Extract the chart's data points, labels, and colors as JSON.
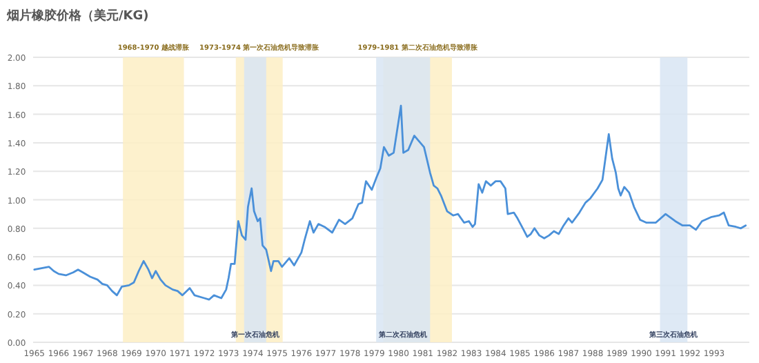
{
  "chart_data": {
    "type": "line",
    "title": "烟片橡胶价格（美元/KG)",
    "x": [
      1965.0,
      1965.3,
      1965.6,
      1965.8,
      1966.0,
      1966.3,
      1966.6,
      1966.8,
      1967.0,
      1967.3,
      1967.6,
      1967.8,
      1968.0,
      1968.2,
      1968.4,
      1968.6,
      1968.9,
      1969.1,
      1969.3,
      1969.5,
      1969.7,
      1969.85,
      1970.0,
      1970.2,
      1970.4,
      1970.7,
      1970.9,
      1971.1,
      1971.4,
      1971.6,
      1972.0,
      1972.2,
      1972.4,
      1972.7,
      1972.9,
      1973.0,
      1973.1,
      1973.25,
      1973.4,
      1973.55,
      1973.7,
      1973.8,
      1973.95,
      1974.05,
      1974.2,
      1974.3,
      1974.4,
      1974.55,
      1974.75,
      1974.85,
      1975.05,
      1975.2,
      1975.5,
      1975.7,
      1976.0,
      1976.15,
      1976.35,
      1976.5,
      1976.7,
      1976.95,
      1977.27,
      1977.55,
      1977.8,
      1978.1,
      1978.35,
      1978.5,
      1978.66,
      1978.9,
      1979.1,
      1979.25,
      1979.4,
      1979.6,
      1979.8,
      1980.1,
      1980.2,
      1980.4,
      1980.65,
      1980.85,
      1981.05,
      1981.3,
      1981.45,
      1981.6,
      1981.75,
      1982.0,
      1982.25,
      1982.45,
      1982.7,
      1982.9,
      1983.05,
      1983.15,
      1983.3,
      1983.45,
      1983.6,
      1983.8,
      1984.0,
      1984.2,
      1984.4,
      1984.5,
      1984.75,
      1984.9,
      1985.15,
      1985.3,
      1985.45,
      1985.6,
      1985.8,
      1986.0,
      1986.2,
      1986.4,
      1986.6,
      1986.8,
      1987.0,
      1987.15,
      1987.45,
      1987.7,
      1987.9,
      1988.2,
      1988.4,
      1988.66,
      1988.8,
      1988.95,
      1989.05,
      1989.15,
      1989.3,
      1989.5,
      1989.7,
      1989.95,
      1990.2,
      1990.6,
      1991.0,
      1991.4,
      1991.7,
      1992.0,
      1992.25,
      1992.5,
      1992.9,
      1993.2,
      1993.4,
      1993.6,
      1993.9,
      1994.1,
      1994.3
    ],
    "values": [
      0.51,
      0.52,
      0.53,
      0.5,
      0.48,
      0.47,
      0.49,
      0.51,
      0.49,
      0.46,
      0.44,
      0.41,
      0.4,
      0.36,
      0.33,
      0.39,
      0.4,
      0.42,
      0.5,
      0.57,
      0.51,
      0.45,
      0.5,
      0.44,
      0.4,
      0.37,
      0.36,
      0.33,
      0.38,
      0.33,
      0.31,
      0.3,
      0.33,
      0.31,
      0.37,
      0.45,
      0.55,
      0.55,
      0.85,
      0.75,
      0.72,
      0.95,
      1.08,
      0.92,
      0.85,
      0.87,
      0.68,
      0.65,
      0.5,
      0.57,
      0.57,
      0.53,
      0.59,
      0.54,
      0.63,
      0.73,
      0.85,
      0.77,
      0.83,
      0.81,
      0.77,
      0.86,
      0.83,
      0.87,
      0.97,
      0.98,
      1.13,
      1.07,
      1.16,
      1.22,
      1.37,
      1.31,
      1.33,
      1.66,
      1.33,
      1.35,
      1.45,
      1.41,
      1.37,
      1.19,
      1.1,
      1.08,
      1.03,
      0.92,
      0.89,
      0.9,
      0.84,
      0.85,
      0.81,
      0.83,
      1.11,
      1.05,
      1.13,
      1.1,
      1.13,
      1.13,
      1.08,
      0.9,
      0.91,
      0.87,
      0.79,
      0.74,
      0.76,
      0.8,
      0.75,
      0.73,
      0.75,
      0.78,
      0.76,
      0.82,
      0.87,
      0.84,
      0.91,
      0.98,
      1.01,
      1.08,
      1.14,
      1.46,
      1.29,
      1.19,
      1.08,
      1.03,
      1.09,
      1.05,
      0.95,
      0.86,
      0.84,
      0.84,
      0.9,
      0.85,
      0.82,
      0.82,
      0.79,
      0.85,
      0.88,
      0.89,
      0.91,
      0.82,
      0.81,
      0.8,
      0.82
    ],
    "color": "#4a90d9",
    "xlim": [
      1964.95,
      1994.45
    ],
    "xticks": [
      1965,
      1966,
      1967,
      1968,
      1969,
      1970,
      1971,
      1972,
      1973,
      1974,
      1975,
      1976,
      1977,
      1978,
      1979,
      1980,
      1981,
      1982,
      1983,
      1984,
      1985,
      1986,
      1987,
      1988,
      1989,
      1990,
      1991,
      1992,
      1993
    ],
    "ylim": [
      0,
      2
    ],
    "yticks": [
      {
        "value": 0,
        "label": "0.00"
      },
      {
        "value": 0.2,
        "label": "0.20"
      },
      {
        "value": 0.4,
        "label": "0.40"
      },
      {
        "value": 0.6,
        "label": "0.60"
      },
      {
        "value": 0.8,
        "label": "0.80"
      },
      {
        "value": 1.0,
        "label": "1.00"
      },
      {
        "value": 1.2,
        "label": "1.20"
      },
      {
        "value": 1.4,
        "label": "1.40"
      },
      {
        "value": 1.6,
        "label": "1.60"
      },
      {
        "value": 1.8,
        "label": "1.80"
      },
      {
        "value": 2.0,
        "label": "2.00"
      }
    ],
    "grid": "y",
    "bands": [
      {
        "axis": "x",
        "from": 1968.65,
        "to": 1971.16,
        "label": "1968-1970 越战滞胀",
        "color": "#fdefc4"
      },
      {
        "axis": "x",
        "from": 1973.3,
        "to": 1975.23,
        "label": "1973-1974 第一次石油危机导致滞胀",
        "color": "#fdefc4"
      },
      {
        "axis": "x",
        "from": 1979.37,
        "to": 1982.2,
        "label": "1979-1981 第二次石油危机导致滞胀",
        "color": "#fdefc4"
      },
      {
        "axis": "x",
        "from": 1973.64,
        "to": 1974.55,
        "label": "第一次石油危机",
        "color": "#d8e5f3"
      },
      {
        "axis": "x",
        "from": 1979.08,
        "to": 1981.3,
        "label": "第二次石油危机",
        "color": "#d8e5f3"
      },
      {
        "axis": "x",
        "from": 1990.77,
        "to": 1991.9,
        "label": "第三次石油危机",
        "color": "#d8e5f3"
      }
    ]
  }
}
